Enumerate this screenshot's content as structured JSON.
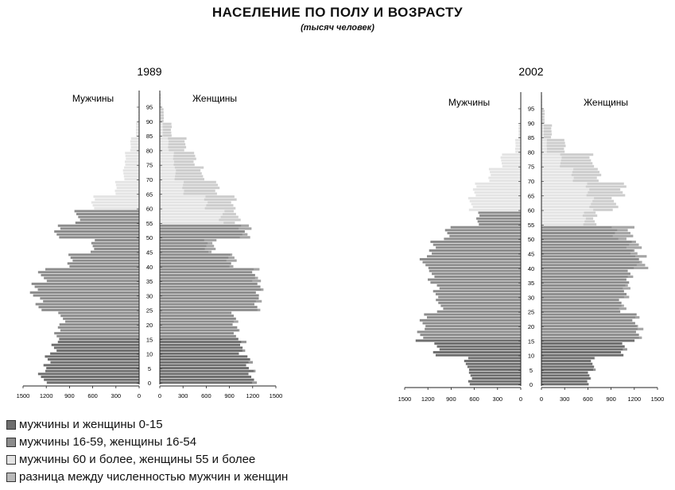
{
  "title": "НАСЕЛЕНИЕ ПО ПОЛУ И ВОЗРАСТУ",
  "subtitle": "(тысяч человек)",
  "colors": {
    "c0_15": "#6e6e6e",
    "c16_59": "#8c8c8c",
    "c60plus": "#e4e4e4",
    "cdiff": "#b9b9b9",
    "axis": "#222222"
  },
  "legend": [
    {
      "label": "мужчины и женщины 0-15",
      "color_key": "c0_15"
    },
    {
      "label": "мужчины 16-59, женщины 16-54",
      "color_key": "c16_59"
    },
    {
      "label": "мужчины 60 и более, женщины 55 и более",
      "color_key": "c60plus"
    },
    {
      "label": "разница между численностью мужчин и женщин",
      "color_key": "cdiff"
    }
  ],
  "chart_data": [
    {
      "type": "bar",
      "title": "1989",
      "left_label": "Мужчины",
      "right_label": "Женщины",
      "age_ticks": [
        "95",
        "90",
        "85",
        "80",
        "75",
        "70",
        "65",
        "60",
        "55",
        "50",
        "45",
        "40",
        "35",
        "30",
        "25",
        "20",
        "15",
        "10",
        "5",
        "0"
      ],
      "x_ticks_left": [
        "1500",
        "1200",
        "900",
        "600",
        "300",
        "0"
      ],
      "x_ticks_right": [
        "0",
        "300",
        "600",
        "900",
        "1200",
        "1500"
      ],
      "xlim": [
        0,
        1500
      ],
      "age_groups": [
        {
          "ages": [
            0,
            4
          ],
          "men": 1250,
          "women": 1200
        },
        {
          "ages": [
            5,
            9
          ],
          "men": 1200,
          "women": 1150
        },
        {
          "ages": [
            10,
            14
          ],
          "men": 1100,
          "women": 1070
        },
        {
          "ages": [
            15,
            19
          ],
          "men": 1050,
          "women": 1000
        },
        {
          "ages": [
            20,
            24
          ],
          "men": 1000,
          "women": 970
        },
        {
          "ages": [
            25,
            29
          ],
          "men": 1300,
          "women": 1260
        },
        {
          "ages": [
            30,
            34
          ],
          "men": 1350,
          "women": 1300
        },
        {
          "ages": [
            35,
            39
          ],
          "men": 1250,
          "women": 1250
        },
        {
          "ages": [
            40,
            44
          ],
          "men": 900,
          "women": 950
        },
        {
          "ages": [
            45,
            49
          ],
          "men": 600,
          "women": 700
        },
        {
          "ages": [
            50,
            54
          ],
          "men": 1050,
          "women": 1150
        },
        {
          "ages": [
            55,
            59
          ],
          "men": 800,
          "women": 1000
        },
        {
          "ages": [
            60,
            64
          ],
          "men": 600,
          "women": 950
        },
        {
          "ages": [
            65,
            69
          ],
          "men": 300,
          "women": 750
        },
        {
          "ages": [
            70,
            74
          ],
          "men": 200,
          "women": 550
        },
        {
          "ages": [
            75,
            79
          ],
          "men": 180,
          "women": 450
        },
        {
          "ages": [
            80,
            84
          ],
          "men": 110,
          "women": 330
        },
        {
          "ages": [
            85,
            89
          ],
          "men": 40,
          "women": 150
        },
        {
          "ages": [
            90,
            94
          ],
          "men": 10,
          "women": 50
        },
        {
          "ages": [
            95,
            99
          ],
          "men": 2,
          "women": 10
        }
      ]
    },
    {
      "type": "bar",
      "title": "2002",
      "left_label": "Мужчины",
      "right_label": "Женщины",
      "age_ticks": [
        "95",
        "90",
        "85",
        "80",
        "75",
        "70",
        "65",
        "60",
        "55",
        "50",
        "45",
        "40",
        "35",
        "30",
        "25",
        "20",
        "15",
        "10",
        "5",
        "0"
      ],
      "x_ticks_left": [
        "1500",
        "1200",
        "900",
        "600",
        "300",
        "0"
      ],
      "x_ticks_right": [
        "0",
        "300",
        "600",
        "900",
        "1200",
        "1500"
      ],
      "xlim": [
        0,
        1500
      ],
      "age_groups": [
        {
          "ages": [
            0,
            4
          ],
          "men": 650,
          "women": 620
        },
        {
          "ages": [
            5,
            9
          ],
          "men": 700,
          "women": 670
        },
        {
          "ages": [
            10,
            14
          ],
          "men": 1100,
          "women": 1060
        },
        {
          "ages": [
            15,
            19
          ],
          "men": 1300,
          "women": 1260
        },
        {
          "ages": [
            20,
            24
          ],
          "men": 1250,
          "women": 1230
        },
        {
          "ages": [
            25,
            29
          ],
          "men": 1050,
          "women": 1050
        },
        {
          "ages": [
            30,
            34
          ],
          "men": 1100,
          "women": 1100
        },
        {
          "ages": [
            35,
            39
          ],
          "men": 1150,
          "women": 1150
        },
        {
          "ages": [
            40,
            44
          ],
          "men": 1250,
          "women": 1320
        },
        {
          "ages": [
            45,
            49
          ],
          "men": 1150,
          "women": 1240
        },
        {
          "ages": [
            50,
            54
          ],
          "men": 950,
          "women": 1150
        },
        {
          "ages": [
            55,
            59
          ],
          "men": 550,
          "women": 700
        },
        {
          "ages": [
            60,
            64
          ],
          "men": 650,
          "women": 950
        },
        {
          "ages": [
            65,
            69
          ],
          "men": 600,
          "women": 1050
        },
        {
          "ages": [
            70,
            74
          ],
          "men": 400,
          "women": 750
        },
        {
          "ages": [
            75,
            79
          ],
          "men": 250,
          "women": 650
        },
        {
          "ages": [
            80,
            84
          ],
          "men": 70,
          "women": 300
        },
        {
          "ages": [
            85,
            89
          ],
          "men": 30,
          "women": 130
        },
        {
          "ages": [
            90,
            94
          ],
          "men": 8,
          "women": 40
        },
        {
          "ages": [
            95,
            99
          ],
          "men": 2,
          "women": 8
        }
      ]
    }
  ]
}
